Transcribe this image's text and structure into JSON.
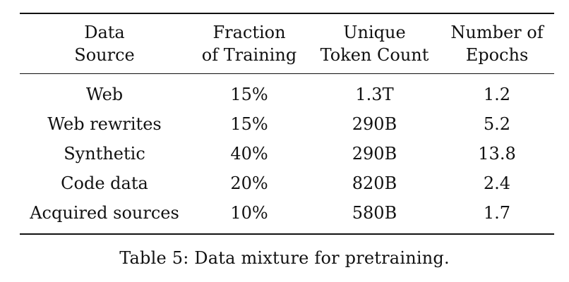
{
  "table": {
    "headers": [
      [
        "Data",
        "Source"
      ],
      [
        "Fraction",
        "of Training"
      ],
      [
        "Unique",
        "Token Count"
      ],
      [
        "Number of",
        "Epochs"
      ]
    ],
    "rows": [
      [
        "Web",
        "15%",
        "1.3T",
        "1.2"
      ],
      [
        "Web rewrites",
        "15%",
        "290B",
        "5.2"
      ],
      [
        "Synthetic",
        "40%",
        "290B",
        "13.8"
      ],
      [
        "Code data",
        "20%",
        "820B",
        "2.4"
      ],
      [
        "Acquired sources",
        "10%",
        "580B",
        "1.7"
      ]
    ]
  },
  "caption": "Table 5: Data mixture for pretraining."
}
